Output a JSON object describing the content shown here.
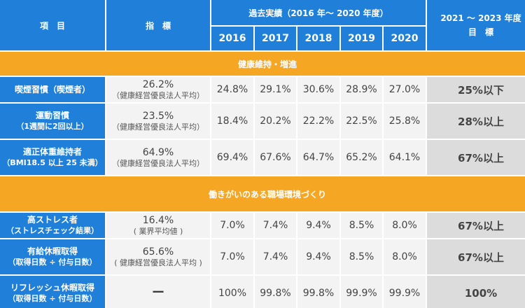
{
  "header": {
    "item": "項　目",
    "indicator": "指　標",
    "past_results": "過去実績（2016 年～ 2020 年度）",
    "years": [
      "2016",
      "2017",
      "2018",
      "2019",
      "2020"
    ],
    "target_line1": "2021 ～ 2023 年度",
    "target_line2": "目　標"
  },
  "sections": [
    {
      "title": "健康維持・増進",
      "rows": [
        {
          "label": "喫煙習慣（喫煙者）",
          "label_sub": "",
          "indicator_value": "26.2%",
          "indicator_note": "（健康経営優良法人平均）",
          "values": [
            "24.8%",
            "29.1%",
            "30.6%",
            "28.9%",
            "27.0%"
          ],
          "target": "25%以下"
        },
        {
          "label": "運動習慣",
          "label_sub": "（1週間に2回以上）",
          "indicator_value": "23.5%",
          "indicator_note": "（健康経営優良法人平均）",
          "values": [
            "18.4%",
            "20.2%",
            "22.2%",
            "22.5%",
            "25.8%"
          ],
          "target": "28%以上"
        },
        {
          "label": "適正体重維持者",
          "label_sub": "（BMI18.5 以上 25 未満）",
          "indicator_value": "64.9%",
          "indicator_note": "（健康経営優良法人平均）",
          "values": [
            "69.4%",
            "67.6%",
            "64.7%",
            "65.2%",
            "64.1%"
          ],
          "target": "67%以上"
        }
      ]
    },
    {
      "title": "働きがいのある職場環境づくり",
      "rows": [
        {
          "label": "高ストレス者",
          "label_sub": "（ストレスチェック結果）",
          "indicator_value": "16.4%",
          "indicator_note": "( 業界平均値 )",
          "values": [
            "7.0%",
            "7.4%",
            "9.4%",
            "8.5%",
            "8.0%"
          ],
          "target": "67%以上"
        },
        {
          "label": "有給休暇取得",
          "label_sub": "（取得日数 ÷ 付与日数）",
          "indicator_value": "65.6%",
          "indicator_note": "( 健康経営優良法人平均 )",
          "values": [
            "7.0%",
            "7.4%",
            "9.4%",
            "8.5%",
            "8.0%"
          ],
          "target": "67%以上"
        },
        {
          "label": "リフレッシュ休暇取得",
          "label_sub": "（取得日数 ÷ 付与日数）",
          "indicator_value": "ー",
          "indicator_note": "",
          "values": [
            "100%",
            "99.8%",
            "99.8%",
            "99.9%",
            "99.9%"
          ],
          "target": "100%"
        }
      ]
    }
  ]
}
